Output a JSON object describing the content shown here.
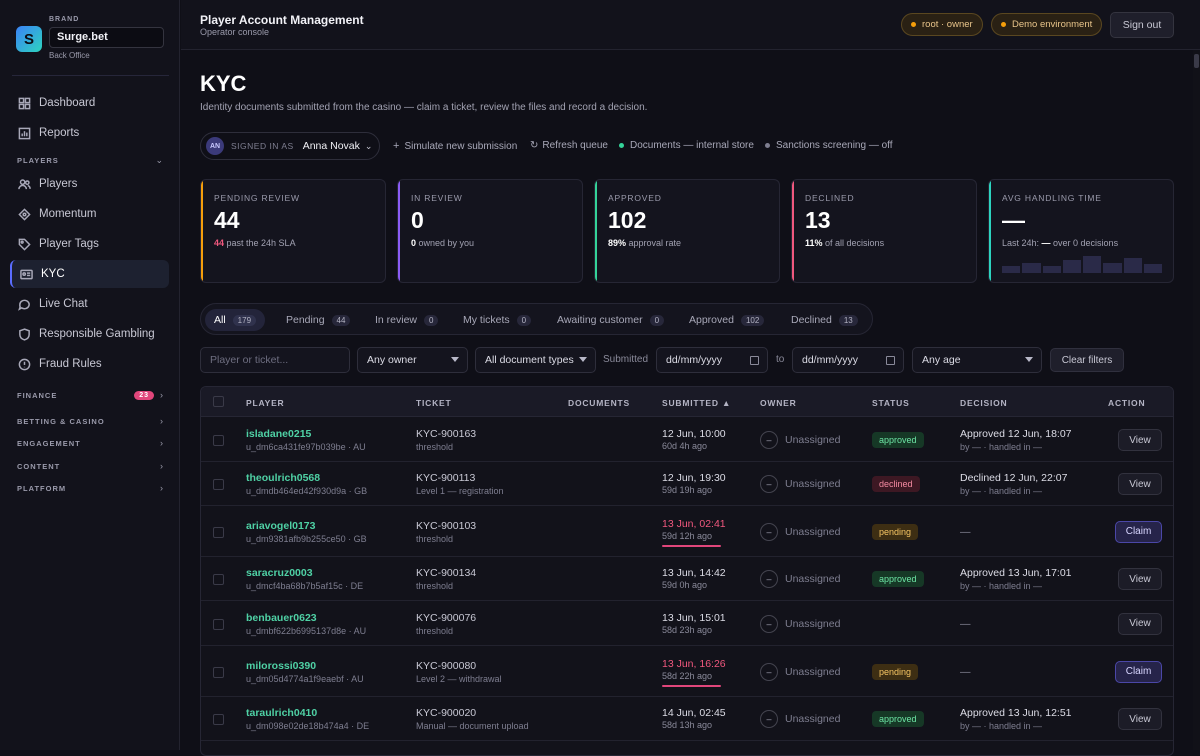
{
  "brand": {
    "caption": "BRAND",
    "name": "Surge.bet",
    "sub": "Back Office",
    "logo": "S"
  },
  "sidebar": {
    "items": [
      {
        "label": "Dashboard",
        "icon": "grid-icon"
      },
      {
        "label": "Reports",
        "icon": "chart-icon"
      },
      {
        "label": "Players",
        "icon": "users-icon"
      },
      {
        "label": "Momentum",
        "icon": "diamond-icon"
      },
      {
        "label": "Player Tags",
        "icon": "tag-icon"
      },
      {
        "label": "KYC",
        "icon": "id-card-icon"
      },
      {
        "label": "Live Chat",
        "icon": "chat-icon"
      },
      {
        "label": "Responsible Gambling",
        "icon": "shield-icon"
      },
      {
        "label": "Fraud Rules",
        "icon": "alert-icon"
      }
    ],
    "sections": {
      "players": "PLAYERS",
      "finance": "FINANCE",
      "finance_badge": "23",
      "betting": "BETTING & CASINO",
      "engagement": "ENGAGEMENT",
      "content": "CONTENT",
      "platform": "PLATFORM"
    }
  },
  "topbar": {
    "title": "Player Account Management",
    "sub": "Operator console",
    "role": "root · owner",
    "env": "Demo environment",
    "signout": "Sign out"
  },
  "page": {
    "title": "KYC",
    "lead": "Identity documents submitted from the casino — claim a ticket, review the files and record a decision."
  },
  "signin": {
    "initials": "AN",
    "caption": "SIGNED IN AS",
    "name": "Anna Novak"
  },
  "tools": {
    "simulate": "Simulate new submission",
    "refresh": "Refresh queue",
    "docs": "Documents — internal store",
    "sanctions": "Sanctions screening — off"
  },
  "cards": [
    {
      "label": "PENDING REVIEW",
      "value": "44",
      "sub_strong": "44",
      "sub": " past the 24h SLA",
      "color": "#f59e0b",
      "strong_color": "#f0587e"
    },
    {
      "label": "IN REVIEW",
      "value": "0",
      "sub_strong": "0",
      "sub": " owned by you",
      "color": "#8b5cf6",
      "strong_color": "#ffffff"
    },
    {
      "label": "APPROVED",
      "value": "102",
      "sub_strong": "89%",
      "sub": " approval rate",
      "color": "#34d399",
      "strong_color": "#ffffff"
    },
    {
      "label": "DECLINED",
      "value": "13",
      "sub_strong": "11%",
      "sub": " of all decisions",
      "color": "#f0587e",
      "strong_color": "#ffffff"
    },
    {
      "label": "AVG HANDLING TIME",
      "value": "—",
      "sub_strong": "—",
      "sub_pre": "Last 24h: ",
      "sub": " over 0 decisions",
      "color": "#2dd4bf",
      "strong_color": "#ffffff"
    }
  ],
  "tabs": [
    {
      "label": "All",
      "count": "179"
    },
    {
      "label": "Pending",
      "count": "44"
    },
    {
      "label": "In review",
      "count": "0"
    },
    {
      "label": "My tickets",
      "count": "0"
    },
    {
      "label": "Awaiting customer",
      "count": "0"
    },
    {
      "label": "Approved",
      "count": "102"
    },
    {
      "label": "Declined",
      "count": "13"
    }
  ],
  "filters": {
    "search_placeholder": "Player or ticket...",
    "owner": "Any owner",
    "doctype": "All document types",
    "submitted": "Submitted",
    "date_placeholder": "dd/mm/yyyy",
    "to": "to",
    "age": "Any age",
    "clear": "Clear filters"
  },
  "table": {
    "headers": {
      "player": "PLAYER",
      "ticket": "TICKET",
      "documents": "DOCUMENTS",
      "submitted": "SUBMITTED ▲",
      "owner": "OWNER",
      "status": "STATUS",
      "decision": "DECISION",
      "action": "ACTION"
    },
    "rows": [
      {
        "player": "isladane0215",
        "pid": "u_dm6ca431fe97b039be · AU",
        "ticket": "KYC-900163",
        "tsub": "threshold",
        "submitted": "12 Jun, 10:00",
        "ago": "60d 4h ago",
        "late": false,
        "owner_icon": "–",
        "owner": "Unassigned",
        "status": "approved",
        "decision": "Approved 12 Jun, 18:07",
        "decision_sub": "by — · handled in —",
        "action": "View"
      },
      {
        "player": "theoulrich0568",
        "pid": "u_dmdb464ed42f930d9a · GB",
        "ticket": "KYC-900113",
        "tsub": "Level 1 — registration",
        "submitted": "12 Jun, 19:30",
        "ago": "59d 19h ago",
        "late": false,
        "owner_icon": "–",
        "owner": "Unassigned",
        "status": "declined",
        "decision": "Declined 12 Jun, 22:07",
        "decision_sub": "by — · handled in —",
        "action": "View"
      },
      {
        "player": "ariavogel0173",
        "pid": "u_dm9381afb9b255ce50 · GB",
        "ticket": "KYC-900103",
        "tsub": "threshold",
        "submitted": "13 Jun, 02:41",
        "ago": "59d 12h ago",
        "late": true,
        "owner_icon": "–",
        "owner": "Unassigned",
        "status": "pending",
        "decision": "—",
        "decision_sub": "",
        "action": "Claim"
      },
      {
        "player": "saracruz0003",
        "pid": "u_dmcf4ba68b7b5af15c · DE",
        "ticket": "KYC-900134",
        "tsub": "threshold",
        "submitted": "13 Jun, 14:42",
        "ago": "59d 0h ago",
        "late": false,
        "owner_icon": "–",
        "owner": "Unassigned",
        "status": "approved",
        "decision": "Approved 13 Jun, 17:01",
        "decision_sub": "by — · handled in —",
        "action": "View"
      },
      {
        "player": "benbauer0623",
        "pid": "u_dmbf622b6995137d8e · AU",
        "ticket": "KYC-900076",
        "tsub": "threshold",
        "submitted": "13 Jun, 15:01",
        "ago": "58d 23h ago",
        "late": false,
        "owner_icon": "–",
        "owner": "Unassigned",
        "status": "",
        "decision": "—",
        "decision_sub": "",
        "action": "View"
      },
      {
        "player": "milorossi0390",
        "pid": "u_dm05d4774a1f9eaebf · AU",
        "ticket": "KYC-900080",
        "tsub": "Level 2 — withdrawal",
        "submitted": "13 Jun, 16:26",
        "ago": "58d 22h ago",
        "late": true,
        "owner_icon": "–",
        "owner": "Unassigned",
        "status": "pending",
        "decision": "—",
        "decision_sub": "",
        "action": "Claim"
      },
      {
        "player": "taraulrich0410",
        "pid": "u_dm098e02de18b474a4 · DE",
        "ticket": "KYC-900020",
        "tsub": "Manual — document upload",
        "submitted": "14 Jun, 02:45",
        "ago": "58d 13h ago",
        "late": false,
        "owner_icon": "–",
        "owner": "Unassigned",
        "status": "approved",
        "decision": "Approved 13 Jun, 12:51",
        "decision_sub": "by — · handled in —",
        "action": "View"
      }
    ]
  }
}
